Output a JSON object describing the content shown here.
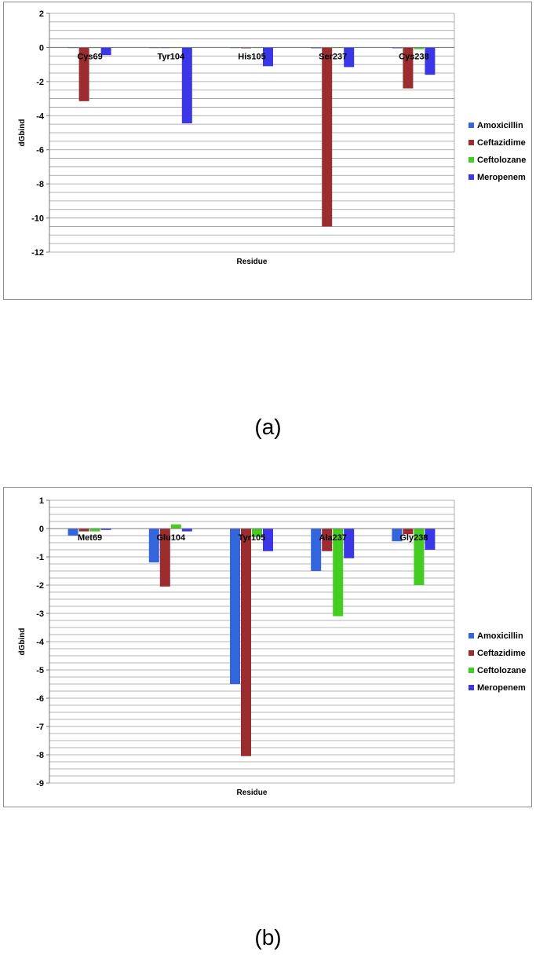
{
  "chart_data": [
    {
      "type": "bar",
      "panel": "a",
      "categories": [
        "Cys69",
        "Tyr104",
        "His105",
        "Ser237",
        "Cys238"
      ],
      "series": [
        {
          "name": "Amoxicillin",
          "color": "#3366dd",
          "values": [
            0,
            0,
            0,
            -0.05,
            -0.05
          ]
        },
        {
          "name": "Ceftazidime",
          "color": "#9b2d30",
          "values": [
            -3.15,
            0,
            -0.05,
            -10.5,
            -2.4
          ]
        },
        {
          "name": "Ceftolozane",
          "color": "#44cc22",
          "values": [
            0,
            0,
            0,
            0,
            -0.1
          ]
        },
        {
          "name": "Meropenem",
          "color": "#3b36e6",
          "values": [
            -0.45,
            -4.45,
            -1.1,
            -1.15,
            -1.6
          ]
        }
      ],
      "xlabel": "Residue",
      "ylabel": "dGbind",
      "ylim": [
        -12,
        2
      ],
      "yticks": [
        "2",
        "0",
        "-2",
        "-4",
        "-6",
        "-8",
        "-10",
        "-12"
      ],
      "legend": "right",
      "grid": true
    },
    {
      "type": "bar",
      "panel": "b",
      "categories": [
        "Met69",
        "Glu104",
        "Tyr105",
        "Ala237",
        "Gly238"
      ],
      "series": [
        {
          "name": "Amoxicillin",
          "color": "#3366dd",
          "values": [
            -0.25,
            -1.2,
            -5.5,
            -1.5,
            -0.45
          ]
        },
        {
          "name": "Ceftazidime",
          "color": "#9b2d30",
          "values": [
            -0.1,
            -2.05,
            -8.05,
            -0.8,
            -0.2
          ]
        },
        {
          "name": "Ceftolozane",
          "color": "#44cc22",
          "values": [
            -0.1,
            0.15,
            -0.3,
            -3.1,
            -2.0
          ]
        },
        {
          "name": "Meropenem",
          "color": "#3b36e6",
          "values": [
            -0.05,
            -0.1,
            -0.8,
            -1.05,
            -0.75
          ]
        }
      ],
      "xlabel": "Residue",
      "ylabel": "dGbind",
      "ylim": [
        -9,
        1
      ],
      "yticks": [
        "1",
        "0",
        "-1",
        "-2",
        "-3",
        "-4",
        "-5",
        "-6",
        "-7",
        "-8",
        "-9"
      ],
      "legend": "right",
      "grid": true
    }
  ],
  "captions": {
    "a": "(a)",
    "b": "(b)"
  }
}
